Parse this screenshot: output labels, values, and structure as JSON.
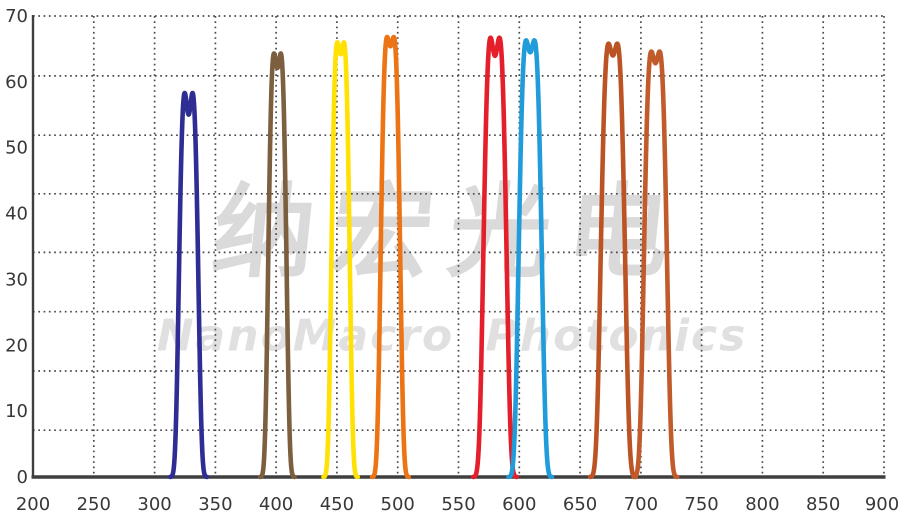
{
  "watermark": {
    "cn": "纳宏光电",
    "en": "NanoMacro Photonics"
  },
  "colors": {
    "background": "#ffffff",
    "axis": "#3f3f3f",
    "grid": "#4a4a4a",
    "tick_label": "#383838",
    "watermark_cn": "#dadada",
    "watermark_en": "#e0e0e0"
  },
  "chart_data": {
    "type": "line",
    "title": "",
    "xlabel": "",
    "ylabel": "",
    "x_range": [
      200,
      900
    ],
    "y_range": [
      0,
      70
    ],
    "x_tick_labels": [
      "200",
      "250",
      "300",
      "350",
      "400",
      "450",
      "500",
      "550",
      "600",
      "650",
      "700",
      "750",
      "800",
      "850",
      "900"
    ],
    "y_tick_labels": [
      "0",
      "10",
      "20",
      "30",
      "40",
      "50",
      "60",
      "70"
    ],
    "x_ticks": [
      200,
      250,
      300,
      350,
      400,
      450,
      500,
      550,
      600,
      650,
      700,
      750,
      800,
      850,
      900
    ],
    "y_ticks": [
      0,
      10,
      20,
      30,
      40,
      50,
      60,
      70
    ],
    "grid": {
      "style": "dotted",
      "x_lines_at": [
        250,
        300,
        350,
        400,
        450,
        500,
        550,
        600,
        650,
        700,
        750,
        800,
        850,
        900
      ],
      "y_lines_at": [
        70,
        60.9,
        51.9,
        43.0,
        34.1,
        25.1,
        16.1,
        7.1
      ]
    },
    "legend": "none",
    "series_description": "Narrow bandpass filter transmission curves (wavelength nm vs transmission %)",
    "series": [
      {
        "name": "filter-328nm",
        "color": "#2e2d93",
        "center_nm": 328,
        "peak_pct": 58.3,
        "fwhm_nm": 16,
        "top_dip": 0.1
      },
      {
        "name": "filter-400nm",
        "color": "#7c5f3e",
        "center_nm": 401,
        "peak_pct": 64.3,
        "fwhm_nm": 15,
        "top_dip": 0.07
      },
      {
        "name": "filter-453nm",
        "color": "#ffe104",
        "center_nm": 453,
        "peak_pct": 66.0,
        "fwhm_nm": 15,
        "top_dip": 0.06
      },
      {
        "name": "filter-494nm",
        "color": "#ec7414",
        "center_nm": 494,
        "peak_pct": 66.8,
        "fwhm_nm": 16,
        "top_dip": 0.05
      },
      {
        "name": "filter-580nm",
        "color": "#e51e2b",
        "center_nm": 580,
        "peak_pct": 66.7,
        "fwhm_nm": 19,
        "top_dip": 0.08
      },
      {
        "name": "filter-609nm",
        "color": "#1f9cd9",
        "center_nm": 609,
        "peak_pct": 66.3,
        "fwhm_nm": 19,
        "top_dip": 0.06
      },
      {
        "name": "filter-677nm",
        "color": "#bc5325",
        "center_nm": 677,
        "peak_pct": 65.8,
        "fwhm_nm": 20,
        "top_dip": 0.06
      },
      {
        "name": "filter-712nm",
        "color": "#c25b2b",
        "center_nm": 712,
        "peak_pct": 64.6,
        "fwhm_nm": 19,
        "top_dip": 0.06
      }
    ]
  }
}
